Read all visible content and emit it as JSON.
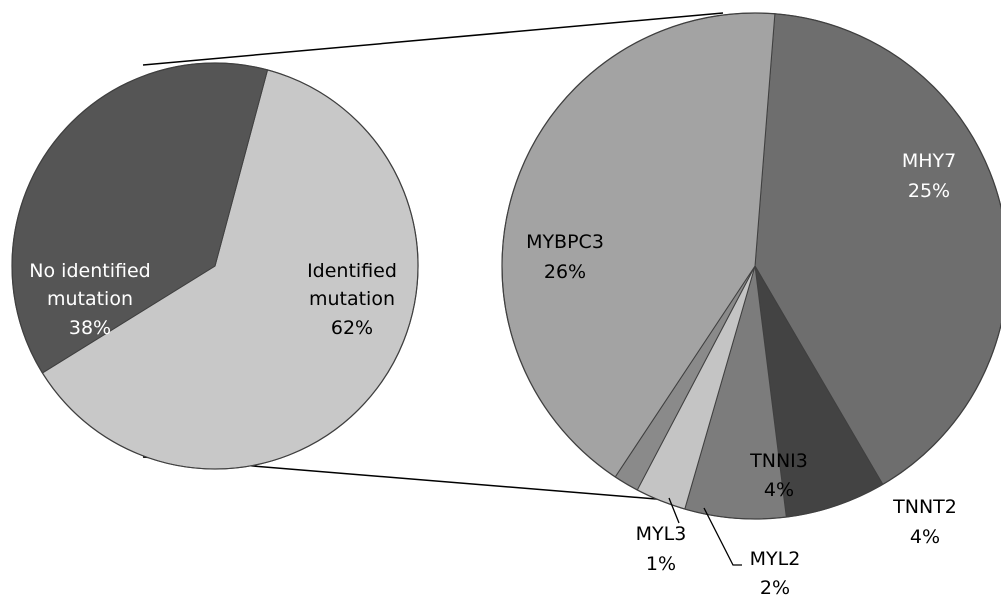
{
  "chart_data": [
    {
      "type": "pie",
      "title": "",
      "slices": [
        {
          "label_lines": [
            "No identified",
            "mutation"
          ],
          "value_text": "38%",
          "value": 38,
          "color": "#555555",
          "text_color": "#ffffff"
        },
        {
          "label_lines": [
            "Identified",
            "mutation"
          ],
          "value_text": "62%",
          "value": 62,
          "color": "#c8c8c8",
          "text_color": "#000000"
        }
      ]
    },
    {
      "type": "pie",
      "title": "",
      "slices": [
        {
          "label_lines": [
            "MHY7"
          ],
          "value_text": "25%",
          "value": 25,
          "color": "#6e6e6e",
          "text_color": "#ffffff"
        },
        {
          "label_lines": [
            "TNNT2"
          ],
          "value_text": "4%",
          "value": 4,
          "color": "#434343",
          "text_color": "#000000"
        },
        {
          "label_lines": [
            "TNNI3"
          ],
          "value_text": "4%",
          "value": 4,
          "color": "#7c7c7c",
          "text_color": "#000000"
        },
        {
          "label_lines": [
            "MYL2"
          ],
          "value_text": "2%",
          "value": 2,
          "color": "#c4c4c4",
          "text_color": "#000000"
        },
        {
          "label_lines": [
            "MYL3"
          ],
          "value_text": "1%",
          "value": 1,
          "color": "#8a8a8a",
          "text_color": "#000000"
        },
        {
          "label_lines": [
            "MYBPC3"
          ],
          "value_text": "26%",
          "value": 26,
          "color": "#a3a3a3",
          "text_color": "#000000"
        }
      ]
    }
  ]
}
